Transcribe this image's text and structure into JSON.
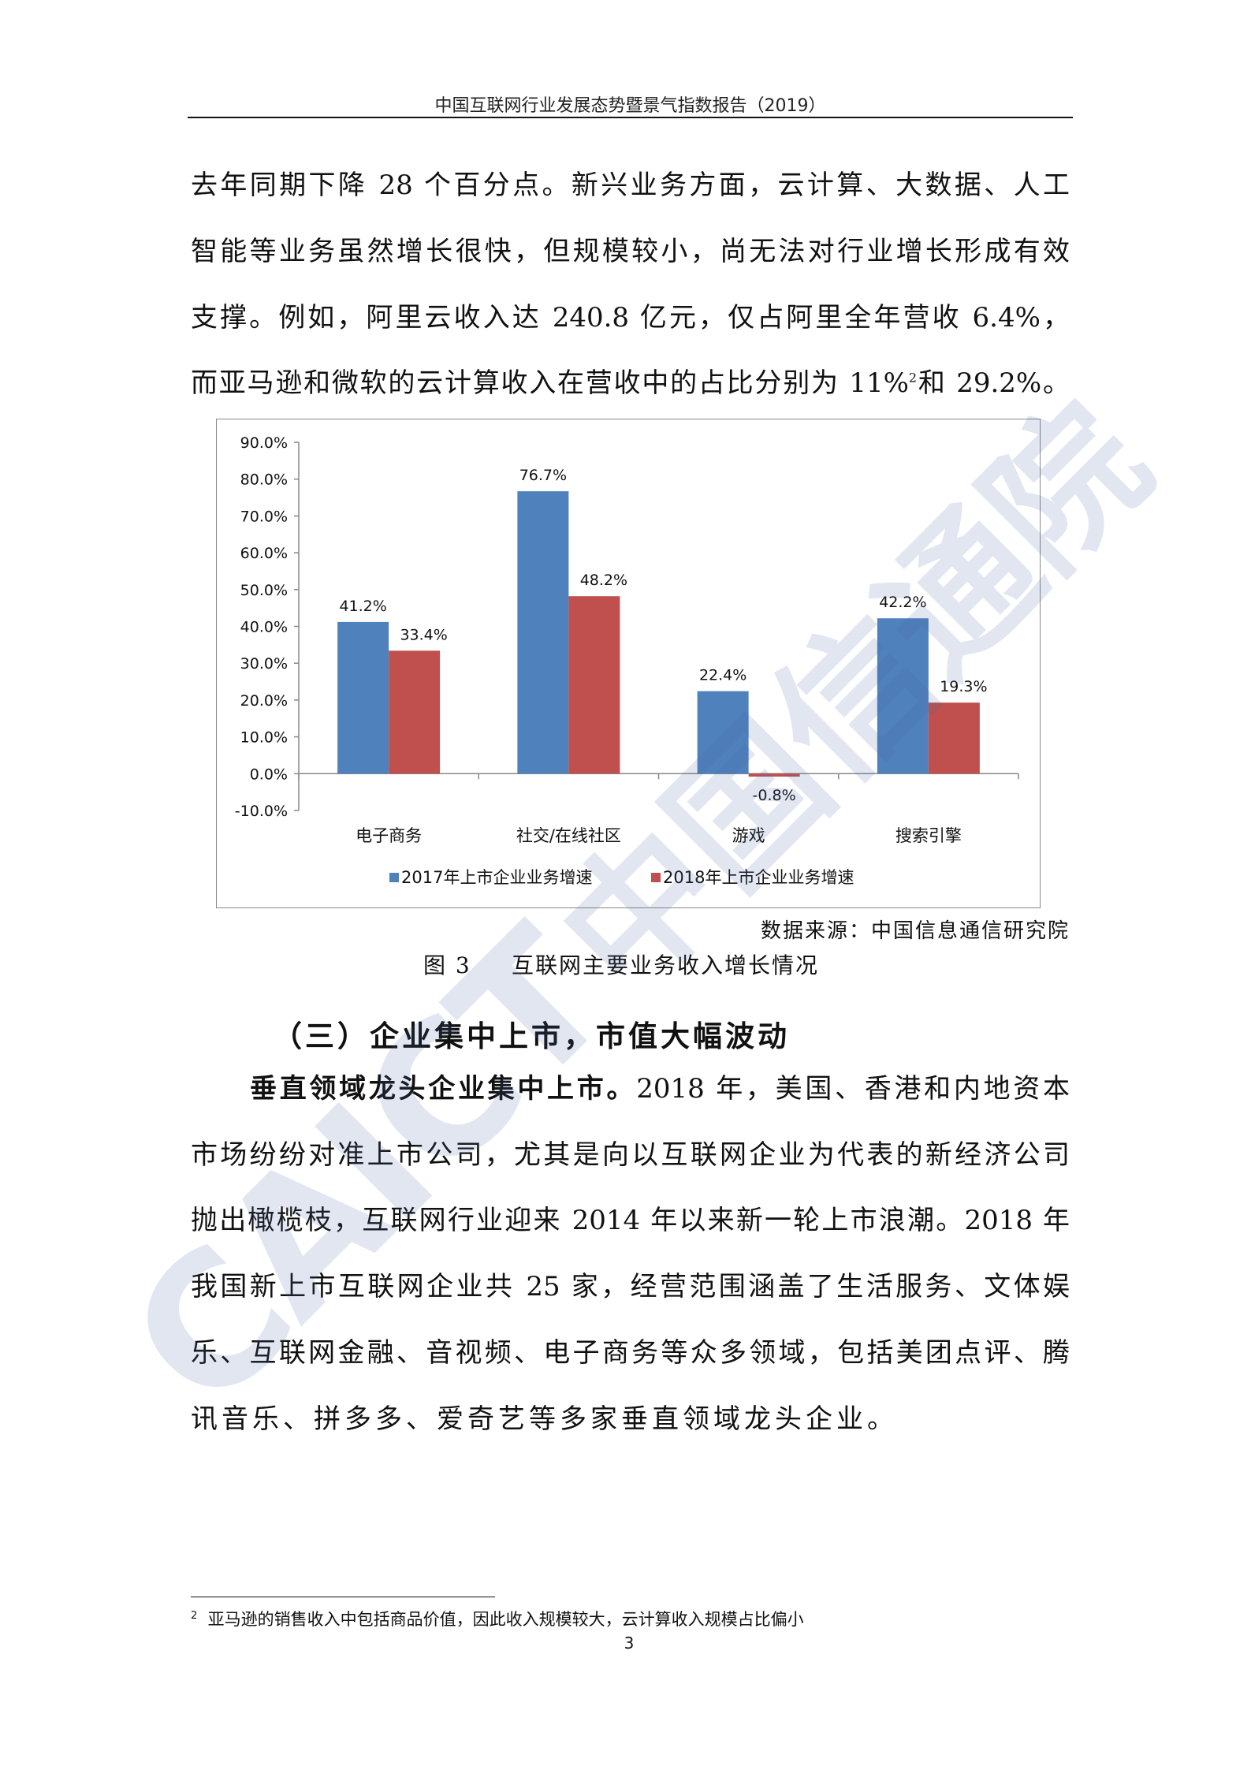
{
  "header": {
    "title": "中国互联网行业发展态势暨景气指数报告（2019）"
  },
  "paragraph1": {
    "lines": [
      "去年同期下降 28 个百分点。新兴业务方面，云计算、大数据、人工",
      "智能等业务虽然增长很快，但规模较小，尚无法对行业增长形成有效",
      "支撑。例如，阿里云收入达 240.8 亿元，仅占阿里全年营收 6.4%，"
    ],
    "line4_a": "而亚马逊和微软的云计算收入在营收中的占比分别为 11%",
    "line4_sup": "2",
    "line4_b": "和 29.2%。"
  },
  "chart_data": {
    "type": "bar",
    "categories": [
      "电子商务",
      "社交/在线社区",
      "游戏",
      "搜索引擎"
    ],
    "series": [
      {
        "name": "2017年上市企业业务增速",
        "values": [
          41.2,
          76.7,
          22.4,
          42.2
        ],
        "labels": [
          "41.2%",
          "76.7%",
          "22.4%",
          "42.2%"
        ],
        "color": "#4F81BD"
      },
      {
        "name": "2018年上市企业业务增速",
        "values": [
          33.4,
          48.2,
          -0.8,
          19.3
        ],
        "labels": [
          "33.4%",
          "48.2%",
          "-0.8%",
          "19.3%"
        ],
        "color": "#C0504D"
      }
    ],
    "yticks": [
      "90.0%",
      "80.0%",
      "70.0%",
      "60.0%",
      "50.0%",
      "40.0%",
      "30.0%",
      "20.0%",
      "10.0%",
      "0.0%",
      "-10.0%"
    ],
    "ylim": [
      -10,
      90
    ],
    "unit": "%",
    "grid": false,
    "legend": "bottom"
  },
  "figure": {
    "source": "数据来源：中国信息通信研究院",
    "number": "图 3",
    "caption": "互联网主要业务收入增长情况"
  },
  "section": {
    "heading": "（三）企业集中上市，市值大幅波动"
  },
  "paragraph2": {
    "lead": "垂直领域龙头企业集中上市。",
    "first_rest": "2018 年，美国、香港和内地资本",
    "lines": [
      "市场纷纷对准上市公司，尤其是向以互联网企业为代表的新经济公司",
      "抛出橄榄枝，互联网行业迎来 2014 年以来新一轮上市浪潮。2018 年",
      "我国新上市互联网企业共 25 家，经营范围涵盖了生活服务、文体娱",
      "乐、互联网金融、音视频、电子商务等众多领域，包括美团点评、腾"
    ],
    "last": "讯音乐、拼多多、爱奇艺等多家垂直领域龙头企业。"
  },
  "footnote": {
    "mark": "2",
    "text": "亚马逊的销售收入中包括商品价值，因此收入规模较大，云计算收入规模占比偏小"
  },
  "page_number": "3",
  "watermark": {
    "logo": "CAICT",
    "text": "中国信通院"
  }
}
